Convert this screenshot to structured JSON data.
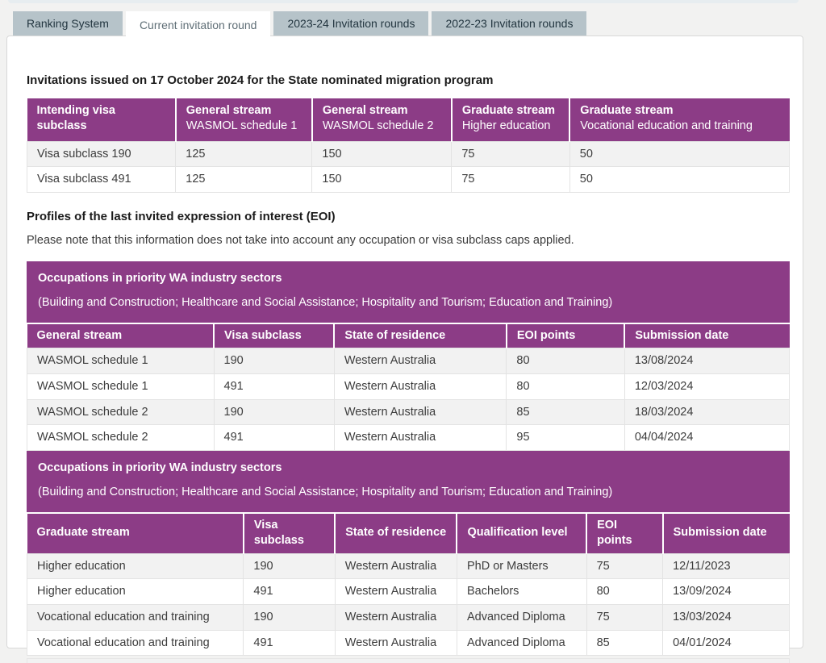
{
  "tabs": [
    {
      "label": "Ranking System",
      "active": false
    },
    {
      "label": "Current invitation round",
      "active": true
    },
    {
      "label": "2023-24 Invitation rounds",
      "active": false
    },
    {
      "label": "2022-23 Invitation rounds",
      "active": false
    }
  ],
  "invitations": {
    "heading": "Invitations issued on 17 October 2024 for the State nominated migration program",
    "columns": [
      {
        "line1": "Intending visa subclass",
        "line2": ""
      },
      {
        "line1": "General stream",
        "line2": "WASMOL schedule 1"
      },
      {
        "line1": "General stream",
        "line2": "WASMOL schedule 2"
      },
      {
        "line1": "Graduate stream",
        "line2": "Higher education"
      },
      {
        "line1": "Graduate stream",
        "line2": "Vocational education and training"
      }
    ],
    "rows": [
      [
        "Visa subclass 190",
        "125",
        "150",
        "75",
        "50"
      ],
      [
        "Visa subclass 491",
        "125",
        "150",
        "75",
        "50"
      ]
    ]
  },
  "profiles": {
    "heading": "Profiles of the last invited expression of interest (EOI)",
    "note": "Please note that this information does not take into account any occupation or visa subclass caps applied."
  },
  "general_stream_table": {
    "banner": {
      "title": "Occupations in priority WA industry sectors",
      "subtitle": "(Building and Construction; Healthcare and Social Assistance; Hospitality and Tourism; Education and Training)"
    },
    "columns": [
      "General stream",
      "Visa subclass",
      "State of residence",
      "EOI points",
      "Submission date"
    ],
    "rows": [
      [
        "WASMOL schedule 1",
        "190",
        "Western Australia",
        "80",
        "13/08/2024"
      ],
      [
        "WASMOL schedule 1",
        "491",
        "Western Australia",
        "80",
        "12/03/2024"
      ],
      [
        "WASMOL schedule 2",
        "190",
        "Western Australia",
        "85",
        "18/03/2024"
      ],
      [
        "WASMOL schedule 2",
        "491",
        "Western Australia",
        "95",
        "04/04/2024"
      ]
    ]
  },
  "graduate_stream_table": {
    "banner": {
      "title": "Occupations in priority WA industry sectors",
      "subtitle": "(Building and Construction; Healthcare and Social Assistance; Hospitality and Tourism; Education and Training)"
    },
    "columns": [
      "Graduate stream",
      "Visa subclass",
      "State of residence",
      "Qualification level",
      "EOI points",
      "Submission date"
    ],
    "rows": [
      [
        "Higher education",
        "190",
        "Western Australia",
        "PhD or Masters",
        "75",
        "12/11/2023"
      ],
      [
        "Higher education",
        "491",
        "Western Australia",
        "Bachelors",
        "80",
        "13/09/2024"
      ],
      [
        "Vocational education and training",
        "190",
        "Western Australia",
        "Advanced Diploma",
        "75",
        "13/03/2024"
      ],
      [
        "Vocational education and training",
        "491",
        "Western Australia",
        "Advanced Diploma",
        "85",
        "04/01/2024"
      ]
    ]
  },
  "colors": {
    "table_header_purple": "#8c3c86",
    "tab_inactive": "#b6c3c9",
    "row_alt": "#f2f2f2",
    "page_background": "#f2f2f1"
  }
}
